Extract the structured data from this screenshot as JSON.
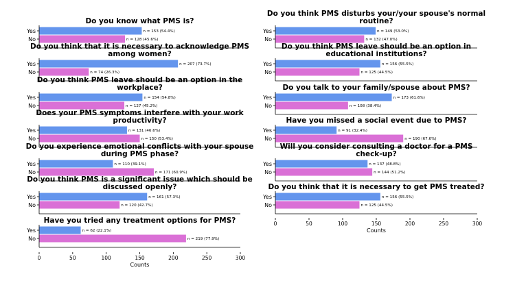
{
  "chart_data": {
    "type": "bar",
    "orientation": "horizontal",
    "colors": {
      "Yes": "#6495ED",
      "No": "#DA70D6"
    },
    "xlabel": "Counts",
    "xlim": [
      0,
      300
    ],
    "xticks": [
      0,
      50,
      100,
      150,
      200,
      250,
      300
    ],
    "grid": false,
    "columns": [
      {
        "panels": [
          {
            "title": "Do you know what PMS is?",
            "bars": [
              {
                "category": "Yes",
                "value": 153,
                "label": "n = 153 (54.4%)"
              },
              {
                "category": "No",
                "value": 128,
                "label": "n = 128 (45.6%)"
              }
            ]
          },
          {
            "title": "Do you think that it is necessary to acknowledge PMS among women?",
            "bars": [
              {
                "category": "Yes",
                "value": 207,
                "label": "n = 207 (73.7%)"
              },
              {
                "category": "No",
                "value": 74,
                "label": "n = 74 (26.3%)"
              }
            ]
          },
          {
            "title": "Do you think PMS leave should be an option in the workplace?",
            "bars": [
              {
                "category": "Yes",
                "value": 154,
                "label": "n = 154 (54.8%)"
              },
              {
                "category": "No",
                "value": 127,
                "label": "n = 127 (45.2%)"
              }
            ]
          },
          {
            "title": "Does your PMS symptoms interfere with your work productivity?",
            "bars": [
              {
                "category": "Yes",
                "value": 131,
                "label": "n = 131 (46.6%)"
              },
              {
                "category": "No",
                "value": 150,
                "label": "n = 150 (53.4%)"
              }
            ]
          },
          {
            "title": "Do you experience emotional conflicts with your spouse during PMS phase?",
            "bars": [
              {
                "category": "Yes",
                "value": 110,
                "label": "n = 110 (39.1%)"
              },
              {
                "category": "No",
                "value": 171,
                "label": "n = 171 (60.9%)"
              }
            ]
          },
          {
            "title": "Do you think PMS is a significant issue which should be discussed openly?",
            "bars": [
              {
                "category": "Yes",
                "value": 161,
                "label": "n = 161 (57.3%)"
              },
              {
                "category": "No",
                "value": 120,
                "label": "n = 120 (42.7%)"
              }
            ]
          },
          {
            "title": "Have you tried any treatment options for PMS?",
            "bars": [
              {
                "category": "Yes",
                "value": 62,
                "label": "n = 62 (22.1%)"
              },
              {
                "category": "No",
                "value": 219,
                "label": "n = 219 (77.9%)"
              }
            ]
          }
        ]
      },
      {
        "panels": [
          {
            "title": "Do you think PMS disturbs your/your spouse's normal routine?",
            "bars": [
              {
                "category": "Yes",
                "value": 149,
                "label": "n = 149 (53.0%)"
              },
              {
                "category": "No",
                "value": 132,
                "label": "n = 132 (47.0%)"
              }
            ]
          },
          {
            "title": "Do you think PMS leave should be an option in educational institutions?",
            "bars": [
              {
                "category": "Yes",
                "value": 156,
                "label": "n = 156 (55.5%)"
              },
              {
                "category": "No",
                "value": 125,
                "label": "n = 125 (44.5%)"
              }
            ]
          },
          {
            "title": "Do you talk to your family/spouse about PMS?",
            "bars": [
              {
                "category": "Yes",
                "value": 173,
                "label": "n = 173 (61.6%)"
              },
              {
                "category": "No",
                "value": 108,
                "label": "n = 108 (38.4%)"
              }
            ]
          },
          {
            "title": "Have you missed a social event due to PMS?",
            "bars": [
              {
                "category": "Yes",
                "value": 91,
                "label": "n = 91 (32.4%)"
              },
              {
                "category": "No",
                "value": 190,
                "label": "n = 190 (67.6%)"
              }
            ]
          },
          {
            "title": "Will you consider consulting a doctor for a PMS check-up?",
            "bars": [
              {
                "category": "Yes",
                "value": 137,
                "label": "n = 137 (48.8%)"
              },
              {
                "category": "No",
                "value": 144,
                "label": "n = 144 (51.2%)"
              }
            ]
          },
          {
            "title": "Do you think that it is necessary to get PMS treated?",
            "bars": [
              {
                "category": "Yes",
                "value": 156,
                "label": "n = 156 (55.5%)"
              },
              {
                "category": "No",
                "value": 125,
                "label": "n = 125 (44.5%)"
              }
            ]
          }
        ]
      }
    ]
  }
}
